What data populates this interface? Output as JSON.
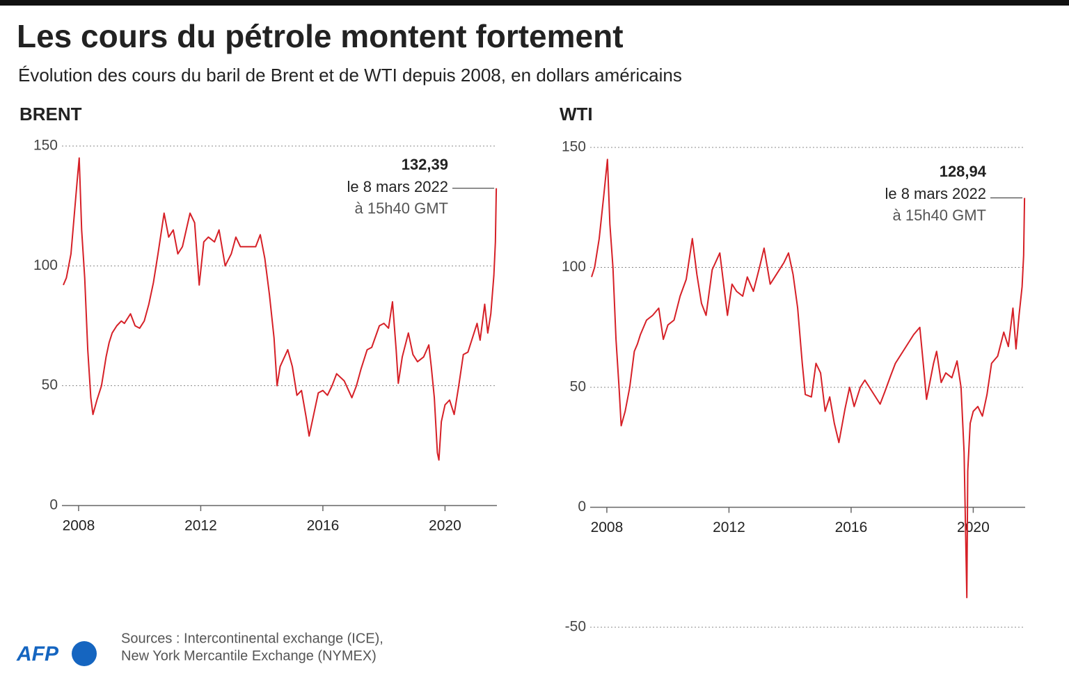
{
  "title": "Les cours du pétrole montent fortement",
  "subtitle": "Évolution des cours du baril de Brent et de WTI depuis 2008, en dollars américains",
  "source": [
    "Sources : Intercontinental exchange (ICE),",
    "New York Mercantile Exchange (NYMEX)"
  ],
  "logo": "AFP",
  "chart_data": [
    {
      "type": "line",
      "title": "BRENT",
      "color": "#d62027",
      "grid": true,
      "xlim": [
        2008,
        2022.2
      ],
      "ylim": [
        0,
        150
      ],
      "xticks": [
        {
          "value": 2008.5,
          "label": "2008"
        },
        {
          "value": 2012.5,
          "label": "2012"
        },
        {
          "value": 2016.5,
          "label": "2016"
        },
        {
          "value": 2020.5,
          "label": "2020"
        }
      ],
      "yticks": [
        0,
        50,
        100,
        150
      ],
      "x": [
        2008.0,
        2008.1,
        2008.25,
        2008.35,
        2008.45,
        2008.52,
        2008.6,
        2008.7,
        2008.8,
        2008.9,
        2008.97,
        2009.1,
        2009.25,
        2009.4,
        2009.5,
        2009.6,
        2009.75,
        2009.9,
        2010.0,
        2010.2,
        2010.35,
        2010.5,
        2010.65,
        2010.8,
        2010.95,
        2011.1,
        2011.3,
        2011.45,
        2011.6,
        2011.75,
        2011.9,
        2012.15,
        2012.3,
        2012.45,
        2012.6,
        2012.75,
        2012.95,
        2013.1,
        2013.3,
        2013.5,
        2013.65,
        2013.8,
        2014.0,
        2014.3,
        2014.45,
        2014.6,
        2014.75,
        2014.9,
        2015.0,
        2015.1,
        2015.35,
        2015.5,
        2015.65,
        2015.8,
        2015.95,
        2016.05,
        2016.2,
        2016.35,
        2016.5,
        2016.65,
        2016.8,
        2016.95,
        2017.2,
        2017.45,
        2017.6,
        2017.75,
        2017.95,
        2018.1,
        2018.35,
        2018.5,
        2018.65,
        2018.78,
        2018.9,
        2018.97,
        2019.1,
        2019.3,
        2019.45,
        2019.6,
        2019.8,
        2019.97,
        2020.05,
        2020.15,
        2020.25,
        2020.3,
        2020.38,
        2020.5,
        2020.65,
        2020.8,
        2020.95,
        2021.1,
        2021.25,
        2021.45,
        2021.55,
        2021.65,
        2021.8,
        2021.9,
        2022.0,
        2022.1,
        2022.15,
        2022.18
      ],
      "values": [
        92,
        95,
        105,
        120,
        135,
        145,
        115,
        95,
        65,
        45,
        38,
        44,
        50,
        62,
        68,
        72,
        75,
        77,
        76,
        80,
        75,
        74,
        77,
        84,
        93,
        105,
        122,
        112,
        115,
        105,
        108,
        122,
        118,
        92,
        110,
        112,
        110,
        115,
        100,
        105,
        112,
        108,
        108,
        108,
        113,
        103,
        88,
        70,
        50,
        58,
        65,
        58,
        46,
        48,
        37,
        29,
        38,
        47,
        48,
        46,
        50,
        55,
        52,
        45,
        50,
        57,
        65,
        66,
        75,
        76,
        74,
        85,
        65,
        51,
        62,
        72,
        63,
        60,
        62,
        67,
        58,
        45,
        22,
        19,
        35,
        42,
        44,
        38,
        50,
        63,
        64,
        72,
        76,
        69,
        84,
        72,
        80,
        96,
        110,
        132.39
      ],
      "annotation": {
        "value": 132.39,
        "label": "132,39",
        "date": "le 8 mars 2022",
        "time": "à 15h40 GMT"
      }
    },
    {
      "type": "line",
      "title": "WTI",
      "color": "#d62027",
      "grid": true,
      "xlim": [
        2008,
        2022.2
      ],
      "ylim": [
        -50,
        150
      ],
      "xticks": [
        {
          "value": 2008.5,
          "label": "2008"
        },
        {
          "value": 2012.5,
          "label": "2012"
        },
        {
          "value": 2016.5,
          "label": "2016"
        },
        {
          "value": 2020.5,
          "label": "2020"
        }
      ],
      "yticks": [
        -50,
        0,
        50,
        100,
        150
      ],
      "x": [
        2008.0,
        2008.1,
        2008.25,
        2008.4,
        2008.52,
        2008.6,
        2008.7,
        2008.8,
        2008.9,
        2008.97,
        2009.1,
        2009.25,
        2009.4,
        2009.5,
        2009.6,
        2009.8,
        2010.0,
        2010.2,
        2010.35,
        2010.5,
        2010.7,
        2010.9,
        2011.1,
        2011.3,
        2011.45,
        2011.6,
        2011.75,
        2011.95,
        2012.2,
        2012.45,
        2012.6,
        2012.75,
        2012.95,
        2013.1,
        2013.3,
        2013.5,
        2013.65,
        2013.85,
        2014.0,
        2014.3,
        2014.45,
        2014.6,
        2014.75,
        2014.9,
        2015.0,
        2015.2,
        2015.35,
        2015.5,
        2015.65,
        2015.8,
        2015.95,
        2016.1,
        2016.3,
        2016.45,
        2016.6,
        2016.8,
        2016.95,
        2017.2,
        2017.45,
        2017.6,
        2017.8,
        2017.95,
        2018.2,
        2018.45,
        2018.55,
        2018.75,
        2018.9,
        2018.97,
        2019.2,
        2019.3,
        2019.45,
        2019.6,
        2019.8,
        2019.97,
        2020.1,
        2020.2,
        2020.29,
        2020.32,
        2020.4,
        2020.5,
        2020.65,
        2020.8,
        2020.95,
        2021.1,
        2021.3,
        2021.5,
        2021.65,
        2021.8,
        2021.9,
        2022.0,
        2022.1,
        2022.15,
        2022.18
      ],
      "values": [
        96,
        100,
        112,
        130,
        145,
        118,
        100,
        70,
        50,
        34,
        40,
        50,
        65,
        68,
        72,
        78,
        80,
        83,
        70,
        76,
        78,
        88,
        95,
        112,
        97,
        85,
        80,
        99,
        106,
        80,
        93,
        90,
        88,
        96,
        90,
        100,
        108,
        93,
        96,
        102,
        106,
        97,
        83,
        60,
        47,
        46,
        60,
        56,
        40,
        46,
        35,
        27,
        41,
        50,
        42,
        50,
        53,
        48,
        43,
        48,
        55,
        60,
        65,
        70,
        72,
        75,
        55,
        45,
        60,
        65,
        52,
        56,
        54,
        61,
        50,
        23,
        -37.63,
        15,
        35,
        40,
        42,
        38,
        47,
        60,
        63,
        73,
        67,
        83,
        66,
        80,
        92,
        105,
        128.94
      ],
      "annotation": {
        "value": 128.94,
        "label": "128,94",
        "date": "le 8 mars 2022",
        "time": "à 15h40 GMT"
      }
    }
  ]
}
